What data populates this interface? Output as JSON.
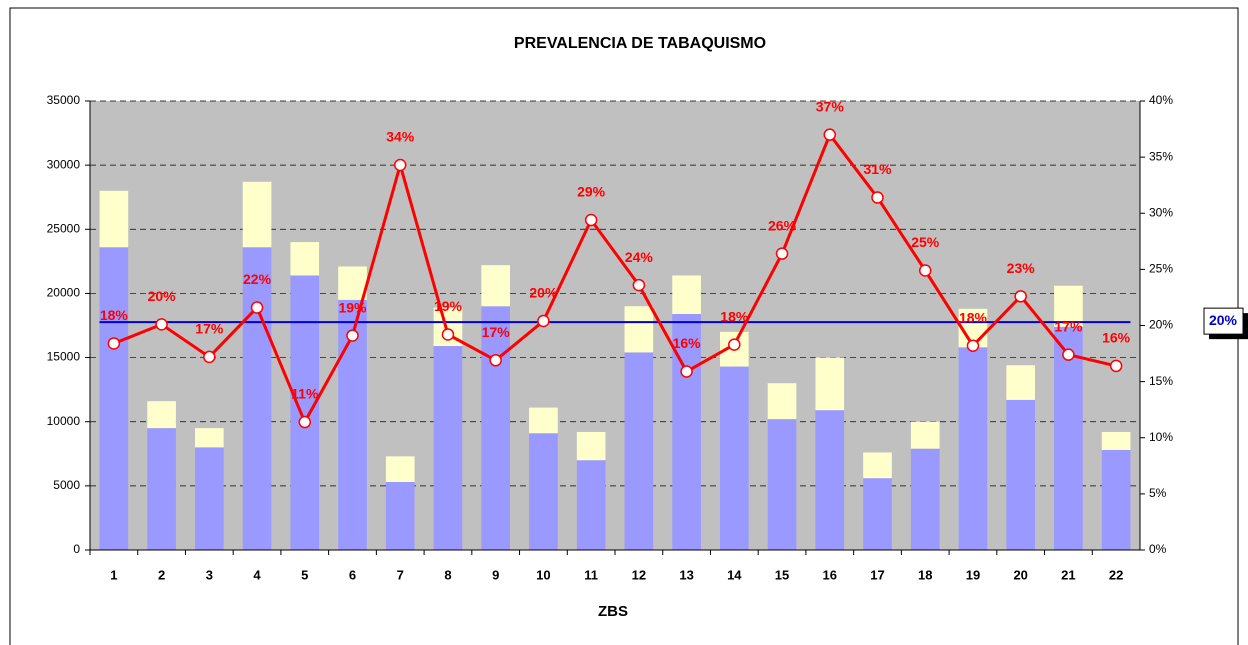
{
  "chart_data": {
    "type": "bar",
    "title": "PREVALENCIA DE TABAQUISMO",
    "x_label": "ZBS",
    "categories": [
      "1",
      "2",
      "3",
      "4",
      "5",
      "6",
      "7",
      "8",
      "9",
      "10",
      "11",
      "12",
      "13",
      "14",
      "15",
      "16",
      "17",
      "18",
      "19",
      "20",
      "21",
      "22"
    ],
    "series": [
      {
        "type": "bar",
        "color": "#9999ff",
        "values": [
          23600,
          9500,
          8000,
          23600,
          21400,
          19500,
          5300,
          15900,
          19000,
          9100,
          7000,
          15400,
          18400,
          14300,
          10200,
          10900,
          5600,
          7900,
          15800,
          11700,
          17400,
          7800
        ]
      },
      {
        "type": "bar",
        "color": "#ffffcc",
        "values": [
          4400,
          2100,
          1500,
          5100,
          2600,
          2600,
          2000,
          3000,
          3200,
          2000,
          2200,
          3600,
          3000,
          2700,
          2800,
          4100,
          2000,
          2100,
          3000,
          2700,
          3200,
          1400
        ]
      },
      {
        "type": "line",
        "axis": "y2",
        "color": "#ff0000",
        "values": [
          18.4,
          20.1,
          17.2,
          21.6,
          11.4,
          19.1,
          34.3,
          19.2,
          16.9,
          20.4,
          29.4,
          23.6,
          15.9,
          18.3,
          26.4,
          37.0,
          31.4,
          24.9,
          18.2,
          22.6,
          17.4,
          16.4
        ],
        "value_labels": [
          "18%",
          "20%",
          "17%",
          "22%",
          "11%",
          "19%",
          "34%",
          "19%",
          "17%",
          "20%",
          "29%",
          "24%",
          "16%",
          "18%",
          "26%",
          "37%",
          "31%",
          "25%",
          "18%",
          "23%",
          "17%",
          "16%"
        ]
      }
    ],
    "reference": {
      "value": 20.3,
      "label": "20%",
      "color": "#0000cc"
    },
    "ylim": [
      0,
      35000
    ],
    "yticks": [
      0,
      5000,
      10000,
      15000,
      20000,
      25000,
      30000,
      35000
    ],
    "y2lim": [
      0,
      40
    ],
    "y2ticks": [
      {
        "value": 0,
        "label": "0%"
      },
      {
        "value": 5,
        "label": "5%"
      },
      {
        "value": 10,
        "label": "10%"
      },
      {
        "value": 15,
        "label": "15%"
      },
      {
        "value": 20,
        "label": "20%"
      },
      {
        "value": 25,
        "label": "25%"
      },
      {
        "value": 30,
        "label": "30%"
      },
      {
        "value": 35,
        "label": "35%"
      },
      {
        "value": 40,
        "label": "40%"
      }
    ],
    "grid": true
  }
}
